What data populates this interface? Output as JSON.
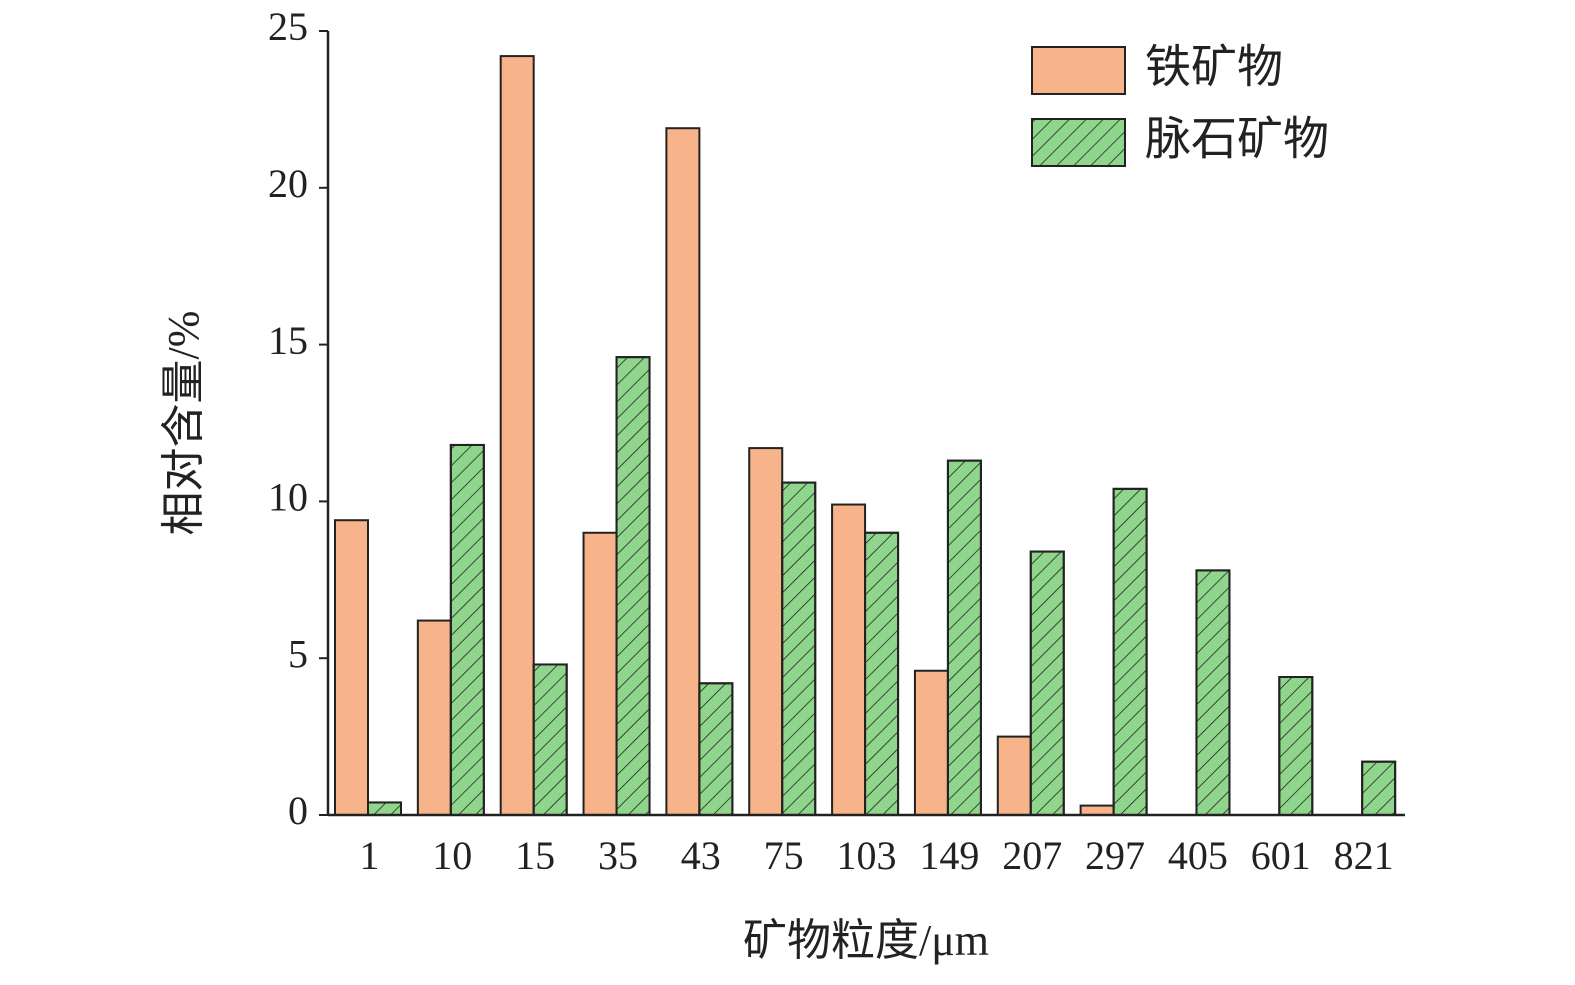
{
  "chart_data": {
    "type": "bar",
    "x_label": "矿物粒度/μm",
    "y_label": "相对含量/%",
    "categories": [
      "1",
      "10",
      "15",
      "35",
      "43",
      "75",
      "103",
      "149",
      "207",
      "297",
      "405",
      "601",
      "821"
    ],
    "series": [
      {
        "name": "铁矿物",
        "color": "#f7b389",
        "pattern": "solid",
        "values": [
          9.4,
          6.2,
          24.2,
          9.0,
          21.9,
          11.7,
          9.9,
          4.6,
          2.5,
          0.3,
          0,
          0,
          0
        ]
      },
      {
        "name": "脉石矿物",
        "color": "#8fd68c",
        "pattern": "hatch",
        "values": [
          0.4,
          11.8,
          4.8,
          14.6,
          4.2,
          10.6,
          9.0,
          11.3,
          8.4,
          10.4,
          7.8,
          4.4,
          1.7
        ]
      }
    ],
    "ylim": [
      0,
      25
    ],
    "yticks": [
      0,
      5,
      10,
      15,
      20,
      25
    ],
    "legend": "upper right"
  }
}
